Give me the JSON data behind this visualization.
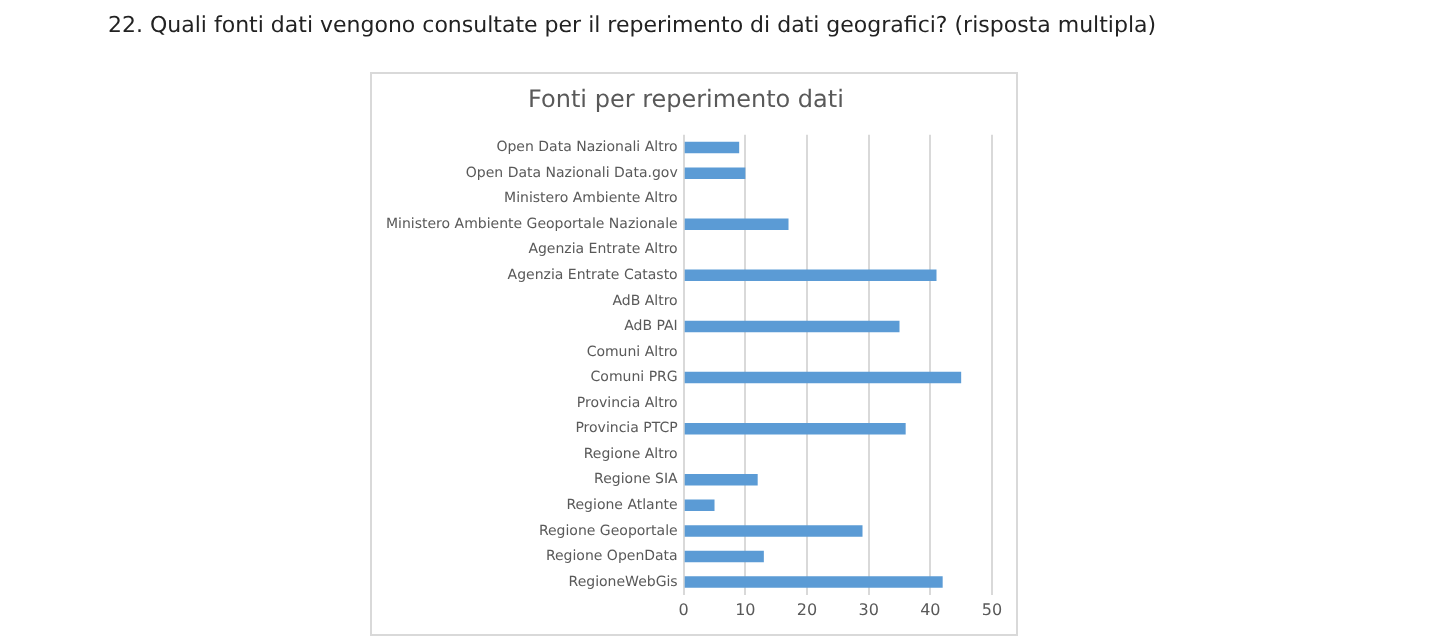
{
  "chart_data": {
    "type": "bar",
    "orientation": "horizontal",
    "title": "22.  Quali fonti dati vengono consultate per il reperimento di dati geografici? (risposta multipla)",
    "subtitle": "Fonti per reperimento dati",
    "categories": [
      "Open Data Nazionali Altro",
      "Open Data Nazionali Data.gov",
      "Ministero Ambiente Altro",
      "Ministero Ambiente Geoportale Nazionale",
      "Agenzia Entrate Altro",
      "Agenzia Entrate Catasto",
      "AdB Altro",
      "AdB PAI",
      "Comuni Altro",
      "Comuni PRG",
      "Provincia Altro",
      "Provincia PTCP",
      "Regione Altro",
      "Regione SIA",
      "Regione Atlante",
      "Regione Geoportale",
      "Regione OpenData",
      "RegioneWebGis"
    ],
    "values": [
      9,
      10,
      0,
      17,
      0,
      41,
      0,
      35,
      0,
      45,
      0,
      36,
      0,
      12,
      5,
      29,
      13,
      42
    ],
    "color": "#5b9bd5",
    "xlim": [
      0,
      50
    ],
    "xticks": [
      0,
      10,
      20,
      30,
      40,
      50
    ],
    "grid": "x",
    "legend": false
  }
}
